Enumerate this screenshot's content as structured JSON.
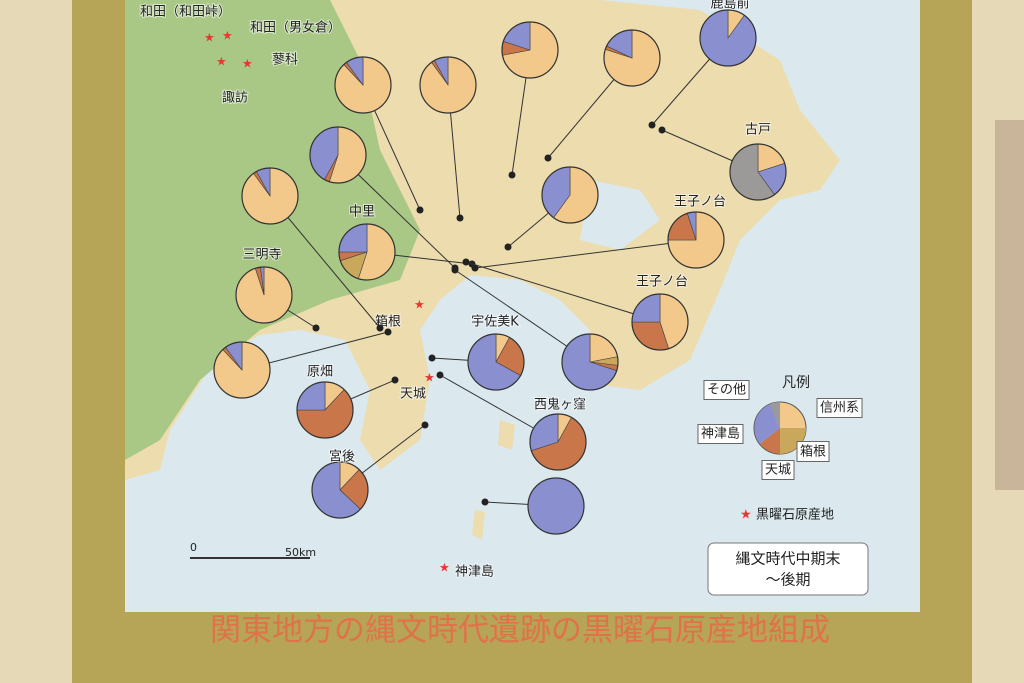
{
  "map": {
    "title": "関東地方の縄文時代遺跡の黒曜石原産地組成",
    "period": [
      "縄文時代中期末",
      "〜後期"
    ],
    "scale": {
      "zero": "0",
      "length": "50km"
    },
    "legend": {
      "title": "凡例",
      "categories": [
        {
          "name": "信州系",
          "color": "#f2c98a"
        },
        {
          "name": "箱根",
          "color": "#c9a85c"
        },
        {
          "name": "天城",
          "color": "#c8764a"
        },
        {
          "name": "神津島",
          "color": "#8a8fcf"
        },
        {
          "name": "その他",
          "color": "#9b9a98"
        }
      ],
      "source_marker": "黒曜石原産地"
    },
    "sources": [
      "和田（和田峠）",
      "和田（男女倉）",
      "蓼科",
      "諏訪",
      "箱根",
      "天城",
      "神津島"
    ],
    "sites": [
      {
        "values": [
          72,
          0,
          8,
          20,
          0
        ]
      },
      {
        "values": [
          80,
          0,
          2,
          18,
          0
        ]
      },
      {
        "label": "鹿島前",
        "values": [
          10,
          0,
          0,
          90,
          0
        ]
      },
      {
        "values": [
          88,
          0,
          2,
          10,
          0
        ]
      },
      {
        "values": [
          90,
          0,
          2,
          8,
          0
        ]
      },
      {
        "values": [
          55,
          0,
          3,
          42,
          0
        ]
      },
      {
        "values": [
          90,
          0,
          2,
          8,
          0
        ]
      },
      {
        "values": [
          60,
          0,
          0,
          40,
          0
        ]
      },
      {
        "label": "古戸",
        "values": [
          20,
          0,
          0,
          20,
          60
        ]
      },
      {
        "label": "中里",
        "values": [
          55,
          15,
          5,
          25,
          0
        ]
      },
      {
        "label": "王子ノ台",
        "values": [
          75,
          0,
          20,
          5,
          0
        ]
      },
      {
        "label": "三明寺",
        "values": [
          95,
          0,
          3,
          2,
          0
        ]
      },
      {
        "label": "王子ノ台",
        "values": [
          45,
          0,
          30,
          25,
          0
        ]
      },
      {
        "values": [
          88,
          0,
          2,
          10,
          0
        ]
      },
      {
        "label": "宇佐美K",
        "values": [
          8,
          0,
          25,
          67,
          0
        ]
      },
      {
        "values": [
          22,
          5,
          3,
          70,
          0
        ]
      },
      {
        "label": "原畑",
        "values": [
          12,
          0,
          63,
          25,
          0
        ]
      },
      {
        "label": "西鬼ヶ窪",
        "values": [
          8,
          0,
          62,
          30,
          0
        ]
      },
      {
        "label": "宮後",
        "values": [
          12,
          0,
          25,
          63,
          0
        ]
      },
      {
        "values": [
          0,
          0,
          0,
          100,
          0
        ]
      }
    ]
  }
}
